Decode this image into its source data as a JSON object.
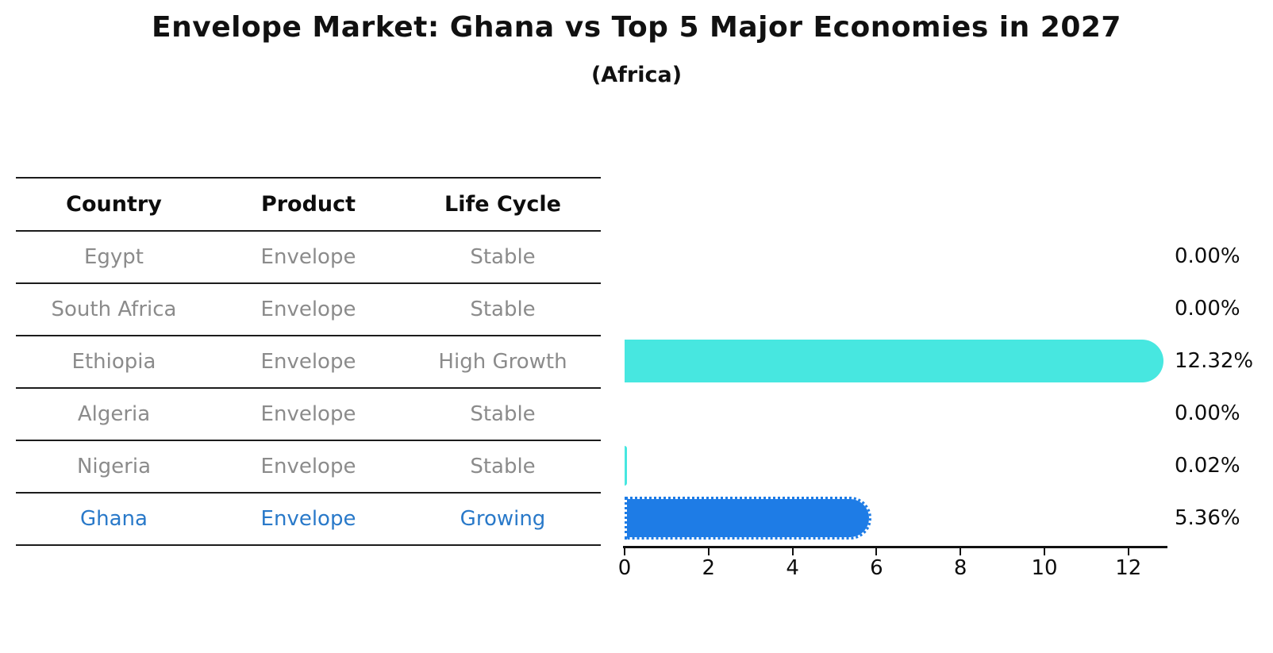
{
  "title": "Envelope Market: Ghana vs Top 5 Major Economies in 2027",
  "subtitle": "(Africa)",
  "table": {
    "headers": [
      "Country",
      "Product",
      "Life Cycle"
    ],
    "rows": [
      {
        "country": "Egypt",
        "product": "Envelope",
        "life_cycle": "Stable",
        "highlight": false
      },
      {
        "country": "South Africa",
        "product": "Envelope",
        "life_cycle": "Stable",
        "highlight": false
      },
      {
        "country": "Ethiopia",
        "product": "Envelope",
        "life_cycle": "High Growth",
        "highlight": false
      },
      {
        "country": "Algeria",
        "product": "Envelope",
        "life_cycle": "Stable",
        "highlight": false
      },
      {
        "country": "Nigeria",
        "product": "Envelope",
        "life_cycle": "Stable",
        "highlight": false
      },
      {
        "country": "Ghana",
        "product": "Envelope",
        "life_cycle": "Growing",
        "highlight": true
      }
    ]
  },
  "chart_data": {
    "type": "bar",
    "orientation": "horizontal",
    "title": "Envelope Market: Ghana vs Top 5 Major Economies in 2027",
    "subtitle": "(Africa)",
    "categories": [
      "Egypt",
      "South Africa",
      "Ethiopia",
      "Algeria",
      "Nigeria",
      "Ghana"
    ],
    "values": [
      0.0,
      0.0,
      12.32,
      0.0,
      0.02,
      5.36
    ],
    "value_labels": [
      "0.00%",
      "0.00%",
      "12.32%",
      "0.00%",
      "0.02%",
      "5.36%"
    ],
    "x_ticks": [
      0,
      2,
      4,
      6,
      8,
      10,
      12
    ],
    "xlim": [
      0,
      12.9
    ],
    "grid": false,
    "legend": false,
    "highlight_index": 5,
    "bar_colors": [
      "#47e7e0",
      "#47e7e0",
      "#47e7e0",
      "#47e7e0",
      "#47e7e0",
      "#1e7ce6"
    ],
    "colors": {
      "default_bar": "#47e7e0",
      "highlight_bar": "#1e7ce6",
      "highlight_text": "#2979c9",
      "table_text": "#8b8b8b",
      "axis_text": "#0d0d0d"
    }
  }
}
